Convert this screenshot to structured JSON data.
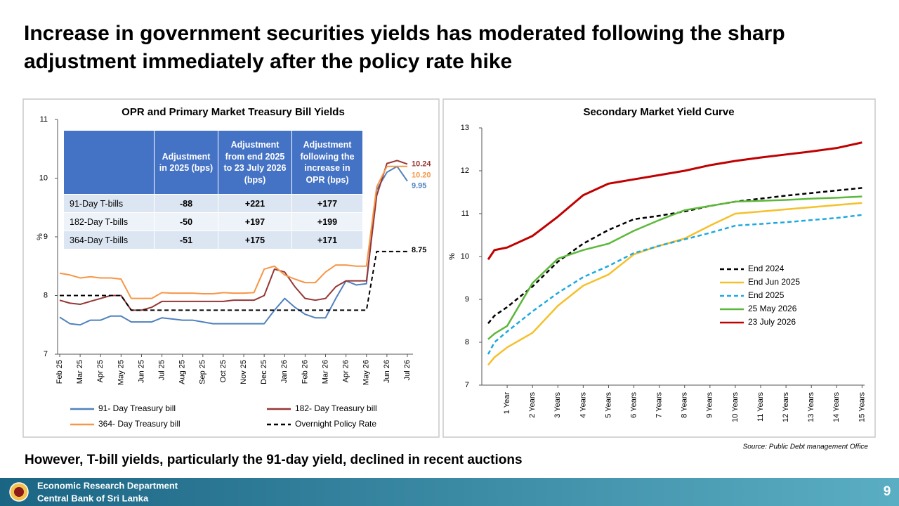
{
  "title": "Increase in government securities yields has moderated following the sharp adjustment immediately after the policy rate hike",
  "chart_data": [
    {
      "type": "line",
      "title": "OPR and Primary Market Treasury Bill Yields",
      "y_label": "%",
      "categories": [
        "Feb 25",
        null,
        "Mar 25",
        null,
        "Apr 25",
        null,
        "May 25",
        null,
        "Jun 25",
        null,
        "Jul 25",
        null,
        "Aug 25",
        null,
        "Sep 25",
        null,
        "Oct 25",
        null,
        "Nov 25",
        null,
        "Dec 25",
        null,
        "Jan 26",
        null,
        "Feb 26",
        null,
        "Mar 26",
        null,
        "Apr 26",
        null,
        "May 26",
        null,
        "Jun 26",
        null,
        "Jul 26"
      ],
      "ylim": [
        7,
        11
      ],
      "yticks": [
        7,
        8,
        9,
        10,
        11
      ],
      "legend": "bottom",
      "series": [
        {
          "name": "91- Day Treasury bill",
          "color": "#4f81bd",
          "dash": false,
          "end_label": true,
          "values": [
            7.63,
            7.52,
            7.5,
            7.58,
            7.58,
            7.65,
            7.65,
            7.55,
            7.55,
            7.55,
            7.62,
            7.6,
            7.58,
            7.58,
            7.55,
            7.52,
            7.52,
            7.52,
            7.52,
            7.52,
            7.52,
            7.75,
            7.95,
            7.8,
            7.68,
            7.62,
            7.62,
            7.95,
            8.25,
            8.18,
            8.2,
            9.8,
            10.1,
            10.2,
            9.95
          ]
        },
        {
          "name": "182- Day Treasury bill",
          "color": "#953735",
          "dash": false,
          "end_label": true,
          "values": [
            7.92,
            7.87,
            7.85,
            7.9,
            7.95,
            8.0,
            8.0,
            7.75,
            7.75,
            7.8,
            7.9,
            7.9,
            7.9,
            7.9,
            7.9,
            7.9,
            7.9,
            7.92,
            7.92,
            7.92,
            8.0,
            8.45,
            8.4,
            8.15,
            7.95,
            7.92,
            7.95,
            8.15,
            8.25,
            8.25,
            8.25,
            9.7,
            10.25,
            10.3,
            10.24
          ]
        },
        {
          "name": "364- Day Treasury bill",
          "color": "#f79646",
          "dash": false,
          "end_label": true,
          "values": [
            8.38,
            8.35,
            8.3,
            8.32,
            8.3,
            8.3,
            8.28,
            7.95,
            7.95,
            7.95,
            8.05,
            8.04,
            8.04,
            8.04,
            8.03,
            8.03,
            8.05,
            8.04,
            8.04,
            8.05,
            8.45,
            8.5,
            8.35,
            8.28,
            8.22,
            8.22,
            8.4,
            8.52,
            8.52,
            8.5,
            8.5,
            9.85,
            10.2,
            10.2,
            10.2
          ],
          "value_labels": [
            null,
            null,
            null,
            null,
            null,
            null,
            null,
            null,
            null,
            null,
            null,
            null,
            null,
            null,
            null,
            null,
            null,
            null,
            null,
            null,
            null,
            null,
            null,
            null,
            null,
            null,
            null,
            null,
            null,
            null,
            null,
            null,
            null,
            null,
            "10.20"
          ]
        },
        {
          "name": "Overnight Policy Rate",
          "color": "#000000",
          "dash": true,
          "end_label": true,
          "values": [
            8.0,
            8.0,
            8.0,
            8.0,
            8.0,
            8.0,
            8.0,
            7.75,
            7.75,
            7.75,
            7.75,
            7.75,
            7.75,
            7.75,
            7.75,
            7.75,
            7.75,
            7.75,
            7.75,
            7.75,
            7.75,
            7.75,
            7.75,
            7.75,
            7.75,
            7.75,
            7.75,
            7.75,
            7.75,
            7.75,
            7.75,
            8.75,
            8.75,
            8.75,
            8.75
          ]
        }
      ]
    },
    {
      "type": "line",
      "title": "Secondary Market Yield Curve",
      "y_label": "%",
      "x": [
        0.25,
        0.5,
        1,
        2,
        3,
        4,
        5,
        6,
        7,
        8,
        9,
        10,
        11,
        12,
        13,
        14,
        15
      ],
      "xlim": [
        0,
        15.1
      ],
      "xticks": [
        {
          "value": 1,
          "label": "1 Year"
        },
        {
          "value": 2,
          "label": "2 Years"
        },
        {
          "value": 3,
          "label": "3 Years"
        },
        {
          "value": 4,
          "label": "4 Years"
        },
        {
          "value": 5,
          "label": "5 Years"
        },
        {
          "value": 6,
          "label": "6 Years"
        },
        {
          "value": 7,
          "label": "7 Years"
        },
        {
          "value": 8,
          "label": "8 Years"
        },
        {
          "value": 9,
          "label": "9 Years"
        },
        {
          "value": 10,
          "label": "10 Years"
        },
        {
          "value": 11,
          "label": "11 Years"
        },
        {
          "value": 12,
          "label": "12 Years"
        },
        {
          "value": 13,
          "label": "13 Years"
        },
        {
          "value": 14,
          "label": "14 Years"
        },
        {
          "value": 15,
          "label": "15 Years"
        }
      ],
      "ylim": [
        7,
        13
      ],
      "yticks": [
        7,
        8,
        9,
        10,
        11,
        12,
        13
      ],
      "legend": "right",
      "series": [
        {
          "name": "End 2024",
          "color": "#000000",
          "dash": true,
          "values": [
            8.44,
            8.62,
            8.82,
            9.3,
            9.88,
            10.3,
            10.62,
            10.87,
            10.95,
            11.05,
            11.18,
            11.28,
            11.35,
            11.42,
            11.48,
            11.54,
            11.6
          ]
        },
        {
          "name": "End Jun 2025",
          "color": "#f5c02a",
          "dash": false,
          "values": [
            7.47,
            7.65,
            7.88,
            8.22,
            8.85,
            9.32,
            9.58,
            10.05,
            10.25,
            10.42,
            10.72,
            11.0,
            11.05,
            11.1,
            11.15,
            11.2,
            11.25
          ]
        },
        {
          "name": "End 2025",
          "color": "#1fa9e1",
          "dash": true,
          "values": [
            7.72,
            8.0,
            8.25,
            8.72,
            9.15,
            9.52,
            9.78,
            10.08,
            10.25,
            10.4,
            10.55,
            10.72,
            10.76,
            10.8,
            10.85,
            10.9,
            10.97
          ]
        },
        {
          "name": "25 May 2026",
          "color": "#5cb83a",
          "dash": false,
          "values": [
            8.07,
            8.2,
            8.38,
            9.38,
            9.95,
            10.15,
            10.3,
            10.6,
            10.85,
            11.08,
            11.18,
            11.28,
            11.3,
            11.32,
            11.35,
            11.37,
            11.4
          ]
        },
        {
          "name": "23 July 2026",
          "color": "#c00000",
          "dash": false,
          "values": [
            9.93,
            10.15,
            10.21,
            10.48,
            10.93,
            11.43,
            11.7,
            11.8,
            11.9,
            12.0,
            12.13,
            12.23,
            12.31,
            12.38,
            12.45,
            12.53,
            12.66
          ]
        }
      ]
    }
  ],
  "table": {
    "header": [
      "Adjustment in 2025 (bps)",
      "Adjustment from end 2025 to 23 July 2026 (bps)",
      "Adjustment following the increase in OPR (bps)"
    ],
    "rows": [
      [
        "91-Day T-bills",
        "-88",
        "+221",
        "+177"
      ],
      [
        "182-Day T-bills",
        "-50",
        "+197",
        "+199"
      ],
      [
        "364-Day T-bills",
        "-51",
        "+175",
        "+171"
      ]
    ]
  },
  "note": "However, T-bill yields, particularly the 91-day yield, declined in recent auctions",
  "source": "Source: Public Debt management Office",
  "footer": {
    "department": "Economic Research Department",
    "organization": "Central Bank of Sri Lanka",
    "page": 9
  }
}
